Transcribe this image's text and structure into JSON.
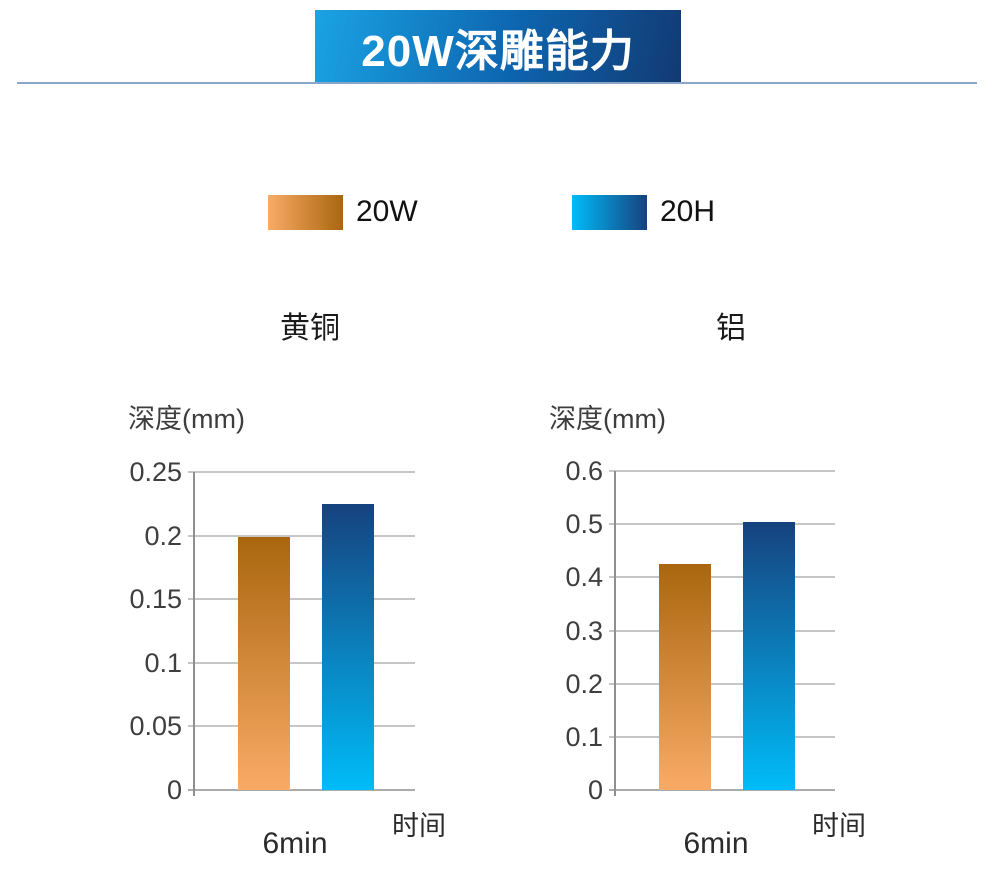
{
  "header": {
    "title": "20W深雕能力"
  },
  "legend": {
    "items": [
      {
        "label": "20W",
        "swatch": "orange-gradient-swatch"
      },
      {
        "label": "20H",
        "swatch": "blue-gradient-swatch"
      }
    ]
  },
  "chart_data": [
    {
      "type": "bar",
      "title": "黄铜",
      "ylabel": "深度(mm)",
      "xlabel": "时间",
      "categories": [
        "6min"
      ],
      "series": [
        {
          "name": "20W",
          "values": [
            0.199
          ]
        },
        {
          "name": "20H",
          "values": [
            0.225
          ]
        }
      ],
      "ylim": [
        0,
        0.25
      ],
      "yticks": [
        "0.25",
        "0.2",
        "0.15",
        "0.1",
        "0.05",
        "0"
      ],
      "grid": true,
      "legend_position": "top"
    },
    {
      "type": "bar",
      "title": "铝",
      "ylabel": "深度(mm)",
      "xlabel": "时间",
      "categories": [
        "6min"
      ],
      "series": [
        {
          "name": "20W",
          "values": [
            0.425
          ]
        },
        {
          "name": "20H",
          "values": [
            0.505
          ]
        }
      ],
      "ylim": [
        0,
        0.6
      ],
      "yticks": [
        "0.6",
        "0.5",
        "0.4",
        "0.3",
        "0.2",
        "0.1",
        "0"
      ],
      "grid": true,
      "legend_position": "top"
    }
  ],
  "colors": {
    "banner_gradient": [
      "#1aa3e4",
      "#0d64ae",
      "#123a73"
    ],
    "underline": "#8aa5c6",
    "series_20w": {
      "dark": "#aa660e",
      "light": "#f9ab66"
    },
    "series_20h": {
      "dark": "#16427e",
      "light": "#00bcf8"
    },
    "gridline": "#c6c6c6",
    "zero_line": "#ababab",
    "axis": "#8f8f8f",
    "tick_text": "#3f3f3f"
  }
}
